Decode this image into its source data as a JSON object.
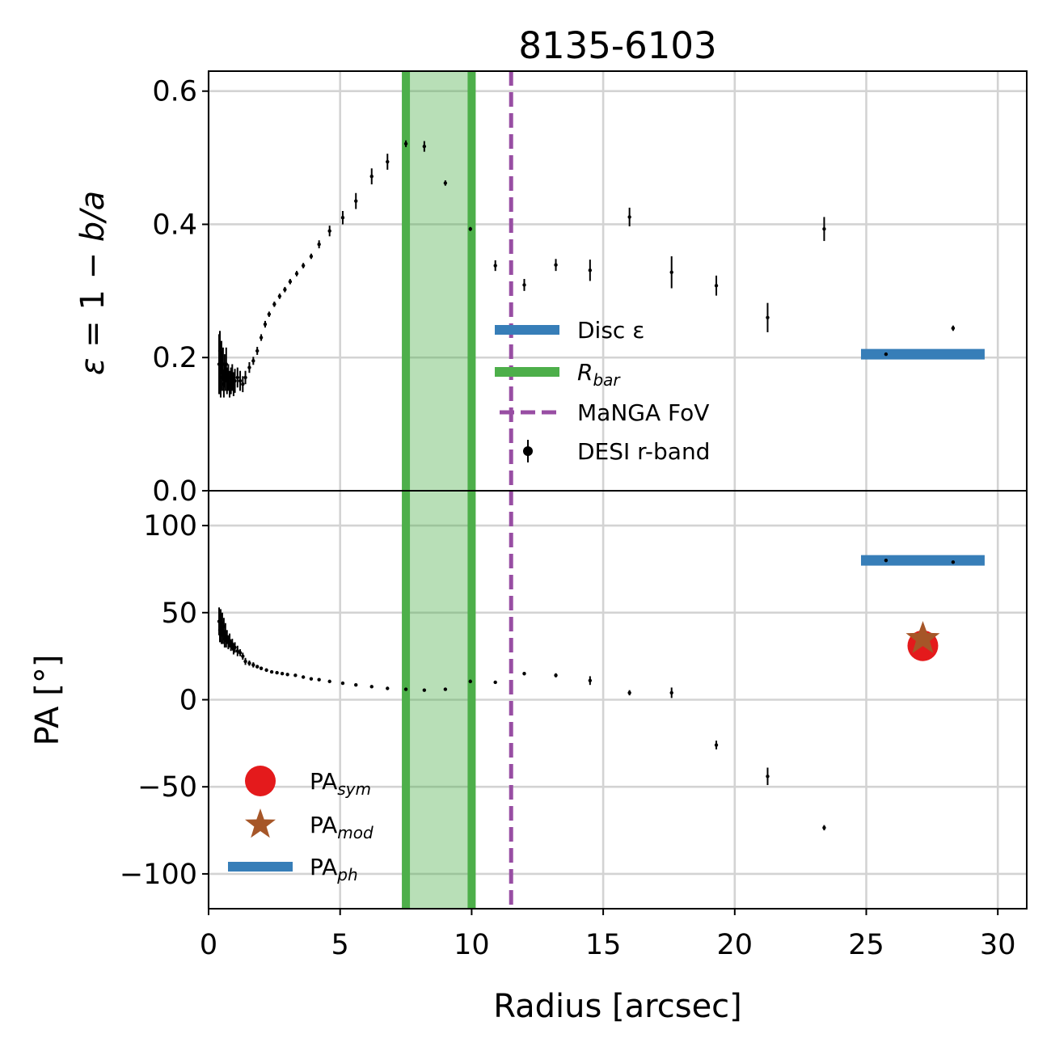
{
  "chart_data": [
    {
      "type": "scatter",
      "panel": "top",
      "title": "8135-6103",
      "ylabel_parts": [
        "ε",
        " = 1 − ",
        "b/a"
      ],
      "xlim": [
        0,
        31.1
      ],
      "ylim": [
        0.0,
        0.63
      ],
      "yticks": [
        0.0,
        0.2,
        0.4,
        0.6
      ],
      "ytick_labels": [
        "0.0",
        "0.2",
        "0.4",
        "0.6"
      ],
      "grid": true,
      "legend_position": "center-right",
      "legend": [
        {
          "label": "Disc ε",
          "marker": "thick-line",
          "color": "#377eb8"
        },
        {
          "label": "R",
          "sub": "bar",
          "marker": "thick-line",
          "color": "#4daf4a"
        },
        {
          "label": "MaNGA FoV",
          "marker": "dashed-line",
          "color": "#984ea3"
        },
        {
          "label": "DESI r-band",
          "marker": "errorbar-point",
          "color": "#000000"
        }
      ],
      "bar_region": {
        "x_start": 7.5,
        "x_end": 10.0,
        "color": "#4daf4a"
      },
      "fov_line": {
        "x": 11.5,
        "color": "#984ea3"
      },
      "disc_value": {
        "y": 0.205,
        "x_start": 24.8,
        "x_end": 29.5,
        "color": "#377eb8"
      },
      "series": [
        {
          "name": "DESI r-band",
          "color": "#000000",
          "points": [
            [
              0.4,
              0.19,
              0.045
            ],
            [
              0.43,
              0.21,
              0.03
            ],
            [
              0.46,
              0.17,
              0.03
            ],
            [
              0.49,
              0.2,
              0.025
            ],
            [
              0.52,
              0.18,
              0.03
            ],
            [
              0.55,
              0.19,
              0.025
            ],
            [
              0.58,
              0.16,
              0.02
            ],
            [
              0.61,
              0.18,
              0.025
            ],
            [
              0.64,
              0.17,
              0.02
            ],
            [
              0.67,
              0.19,
              0.025
            ],
            [
              0.7,
              0.165,
              0.02
            ],
            [
              0.75,
              0.17,
              0.02
            ],
            [
              0.8,
              0.16,
              0.02
            ],
            [
              0.85,
              0.165,
              0.02
            ],
            [
              0.9,
              0.17,
              0.02
            ],
            [
              0.95,
              0.16,
              0.018
            ],
            [
              1.0,
              0.165,
              0.018
            ],
            [
              1.1,
              0.17,
              0.015
            ],
            [
              1.2,
              0.165,
              0.015
            ],
            [
              1.3,
              0.16,
              0.012
            ],
            [
              1.4,
              0.17,
              0.01
            ],
            [
              1.55,
              0.185,
              0.008
            ],
            [
              1.7,
              0.195,
              0.006
            ],
            [
              1.85,
              0.21,
              0.006
            ],
            [
              2.0,
              0.23,
              0.005
            ],
            [
              2.15,
              0.25,
              0.005
            ],
            [
              2.3,
              0.265,
              0.004
            ],
            [
              2.5,
              0.28,
              0.004
            ],
            [
              2.7,
              0.292,
              0.004
            ],
            [
              2.9,
              0.302,
              0.004
            ],
            [
              3.1,
              0.314,
              0.004
            ],
            [
              3.35,
              0.326,
              0.004
            ],
            [
              3.6,
              0.338,
              0.004
            ],
            [
              3.9,
              0.352,
              0.004
            ],
            [
              4.2,
              0.37,
              0.006
            ],
            [
              4.6,
              0.39,
              0.008
            ],
            [
              5.1,
              0.41,
              0.01
            ],
            [
              5.6,
              0.435,
              0.012
            ],
            [
              6.2,
              0.472,
              0.012
            ],
            [
              6.8,
              0.494,
              0.012
            ],
            [
              7.5,
              0.521,
              0.005
            ],
            [
              8.2,
              0.517,
              0.008
            ],
            [
              9.0,
              0.462,
              0.004
            ],
            [
              9.95,
              0.393,
              0.003
            ],
            [
              10.9,
              0.338,
              0.008
            ],
            [
              12.0,
              0.309,
              0.009
            ],
            [
              13.2,
              0.339,
              0.009
            ],
            [
              14.5,
              0.331,
              0.016
            ],
            [
              16.0,
              0.411,
              0.014
            ],
            [
              17.6,
              0.328,
              0.024
            ],
            [
              19.3,
              0.308,
              0.015
            ],
            [
              21.25,
              0.26,
              0.022
            ],
            [
              23.4,
              0.393,
              0.018
            ],
            [
              25.75,
              0.205,
              0.003
            ],
            [
              28.3,
              0.244,
              0.004
            ]
          ]
        }
      ]
    },
    {
      "type": "scatter",
      "panel": "bottom",
      "xlabel": "Radius [arcsec]",
      "ylabel": "PA [°]",
      "xlim": [
        0,
        31.1
      ],
      "ylim": [
        -120,
        120
      ],
      "xticks": [
        0,
        5,
        10,
        15,
        20,
        25,
        30
      ],
      "xtick_labels": [
        "0",
        "5",
        "10",
        "15",
        "20",
        "25",
        "30"
      ],
      "yticks": [
        -100,
        -50,
        0,
        50,
        100
      ],
      "ytick_labels": [
        "−100",
        "−50",
        "0",
        "50",
        "100"
      ],
      "grid": true,
      "legend_position": "bottom-left",
      "legend": [
        {
          "label": "PA",
          "sub": "sym",
          "marker": "circle",
          "color": "#e41a1c"
        },
        {
          "label": "PA",
          "sub": "mod",
          "marker": "star",
          "color": "#a65628"
        },
        {
          "label": "PA",
          "sub": "ph",
          "marker": "thick-line",
          "color": "#377eb8"
        }
      ],
      "pa_sym": {
        "x": 27.15,
        "y": 31,
        "color": "#e41a1c"
      },
      "pa_mod": {
        "x": 27.15,
        "y": 35,
        "color": "#a65628"
      },
      "pa_ph": {
        "y": 80,
        "x_start": 24.8,
        "x_end": 29.5,
        "color": "#377eb8"
      },
      "series": [
        {
          "name": "DESI r-band",
          "color": "#000000",
          "points": [
            [
              0.4,
              45,
              8
            ],
            [
              0.43,
              40,
              7
            ],
            [
              0.46,
              46,
              6
            ],
            [
              0.49,
              38,
              6
            ],
            [
              0.52,
              44,
              6
            ],
            [
              0.55,
              37,
              5
            ],
            [
              0.58,
              42,
              5
            ],
            [
              0.61,
              35,
              5
            ],
            [
              0.64,
              39,
              5
            ],
            [
              0.67,
              34,
              4
            ],
            [
              0.7,
              36,
              4
            ],
            [
              0.75,
              33,
              4
            ],
            [
              0.8,
              34,
              4
            ],
            [
              0.85,
              31,
              3
            ],
            [
              0.9,
              32,
              3
            ],
            [
              0.95,
              29,
              3
            ],
            [
              1.0,
              30,
              3
            ],
            [
              1.1,
              28,
              3
            ],
            [
              1.2,
              27,
              2
            ],
            [
              1.3,
              25,
              2
            ],
            [
              1.4,
              22,
              2
            ],
            [
              1.55,
              21,
              1.5
            ],
            [
              1.7,
              20,
              1.5
            ],
            [
              1.85,
              19,
              1
            ],
            [
              2.0,
              18,
              1
            ],
            [
              2.2,
              17,
              1
            ],
            [
              2.4,
              16,
              0.8
            ],
            [
              2.6,
              15.5,
              0.8
            ],
            [
              2.8,
              15,
              0.6
            ],
            [
              3.0,
              14.5,
              0.6
            ],
            [
              3.3,
              14,
              0.6
            ],
            [
              3.6,
              13,
              0.6
            ],
            [
              3.9,
              12,
              0.6
            ],
            [
              4.2,
              11.5,
              0.6
            ],
            [
              4.6,
              10.5,
              0.6
            ],
            [
              5.1,
              9.5,
              0.6
            ],
            [
              5.6,
              8.5,
              0.6
            ],
            [
              6.2,
              7.5,
              0.6
            ],
            [
              6.8,
              6.5,
              0.6
            ],
            [
              7.5,
              6,
              0.6
            ],
            [
              8.2,
              5.5,
              0.6
            ],
            [
              9.0,
              6,
              0.6
            ],
            [
              9.95,
              10.5,
              1
            ],
            [
              10.9,
              10,
              0.8
            ],
            [
              12.0,
              15,
              1
            ],
            [
              13.2,
              14,
              1.2
            ],
            [
              14.5,
              11,
              2.5
            ],
            [
              16.0,
              4,
              1.5
            ],
            [
              17.6,
              4,
              3
            ],
            [
              19.3,
              -26,
              2.5
            ],
            [
              21.25,
              -44,
              5
            ],
            [
              23.4,
              -73.5,
              1.5
            ],
            [
              25.75,
              80,
              1
            ],
            [
              28.3,
              79,
              1
            ]
          ]
        }
      ]
    }
  ]
}
